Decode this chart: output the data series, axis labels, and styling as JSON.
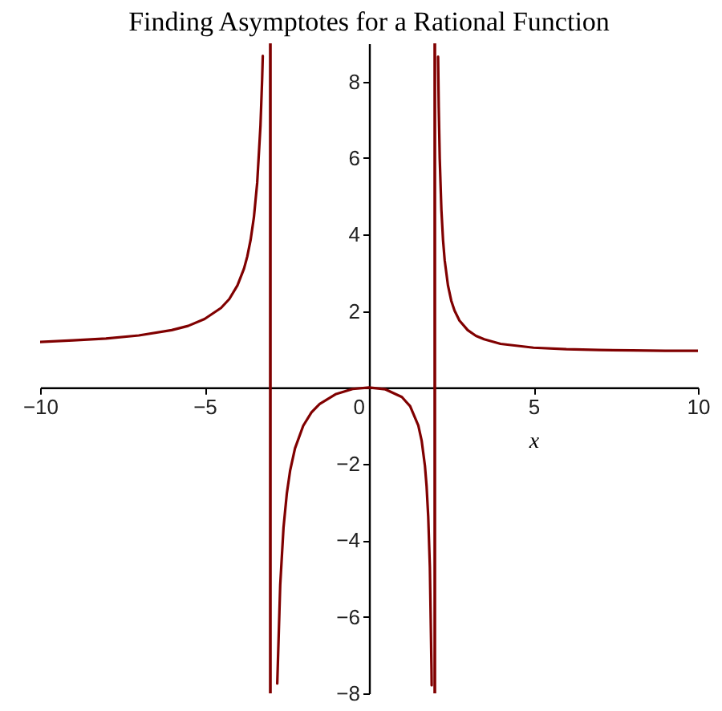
{
  "chart_data": {
    "type": "line",
    "title": "Finding Asymptotes for a Rational Function",
    "xlabel": "x",
    "x": [
      -10,
      -9,
      -8,
      -7,
      -6,
      -5.5,
      -5,
      -4.5,
      -4.25,
      -4,
      -3.8,
      -3.7,
      -3.6,
      -3.5,
      -3.4,
      -3.3,
      -3.25,
      -3.23,
      -3,
      -2.79,
      -2.7,
      -2.6,
      -2.5,
      -2.4,
      -2.25,
      -2,
      -1.75,
      -1.5,
      -1,
      -0.5,
      0,
      0.5,
      1,
      1.25,
      1.5,
      1.6,
      1.7,
      1.75,
      1.8,
      1.85,
      1.9,
      1.905,
      2,
      2.1,
      2.12,
      2.15,
      2.2,
      2.25,
      2.3,
      2.4,
      2.5,
      2.6,
      2.75,
      3,
      3.25,
      3.5,
      4,
      5,
      6,
      7,
      8,
      9,
      10
    ],
    "values": [
      1.19,
      1.23,
      1.28,
      1.36,
      1.5,
      1.61,
      1.79,
      2.08,
      2.31,
      2.67,
      3.11,
      3.43,
      3.86,
      4.45,
      5.35,
      6.85,
      8.05,
      8.67,
      null,
      -7.74,
      -5.17,
      -3.67,
      -2.78,
      -2.18,
      -1.59,
      -1,
      -0.65,
      -0.43,
      -0.17,
      -0.04,
      0,
      -0.05,
      -0.25,
      -0.49,
      -1,
      -1.39,
      -2.05,
      -2.58,
      -3.38,
      -4.7,
      -7.37,
      -7.79,
      null,
      8.65,
      7.32,
      5.98,
      4.65,
      3.86,
      3.33,
      2.67,
      2.27,
      2.01,
      1.75,
      1.5,
      1.35,
      1.26,
      1.14,
      1.04,
      1,
      0.98,
      0.97,
      0.96,
      0.96
    ],
    "color": "#800000",
    "xlim": [
      -10,
      10
    ],
    "ylim": [
      -8,
      9
    ],
    "xticks": [
      -10,
      -5,
      0,
      5,
      10
    ],
    "yticks": [
      -8,
      -6,
      -4,
      -2,
      2,
      4,
      6,
      8
    ],
    "ref_lines": [
      {
        "axis": "x",
        "value": -3,
        "color": "#800000"
      },
      {
        "axis": "x",
        "value": 2,
        "color": "#800000"
      }
    ]
  }
}
